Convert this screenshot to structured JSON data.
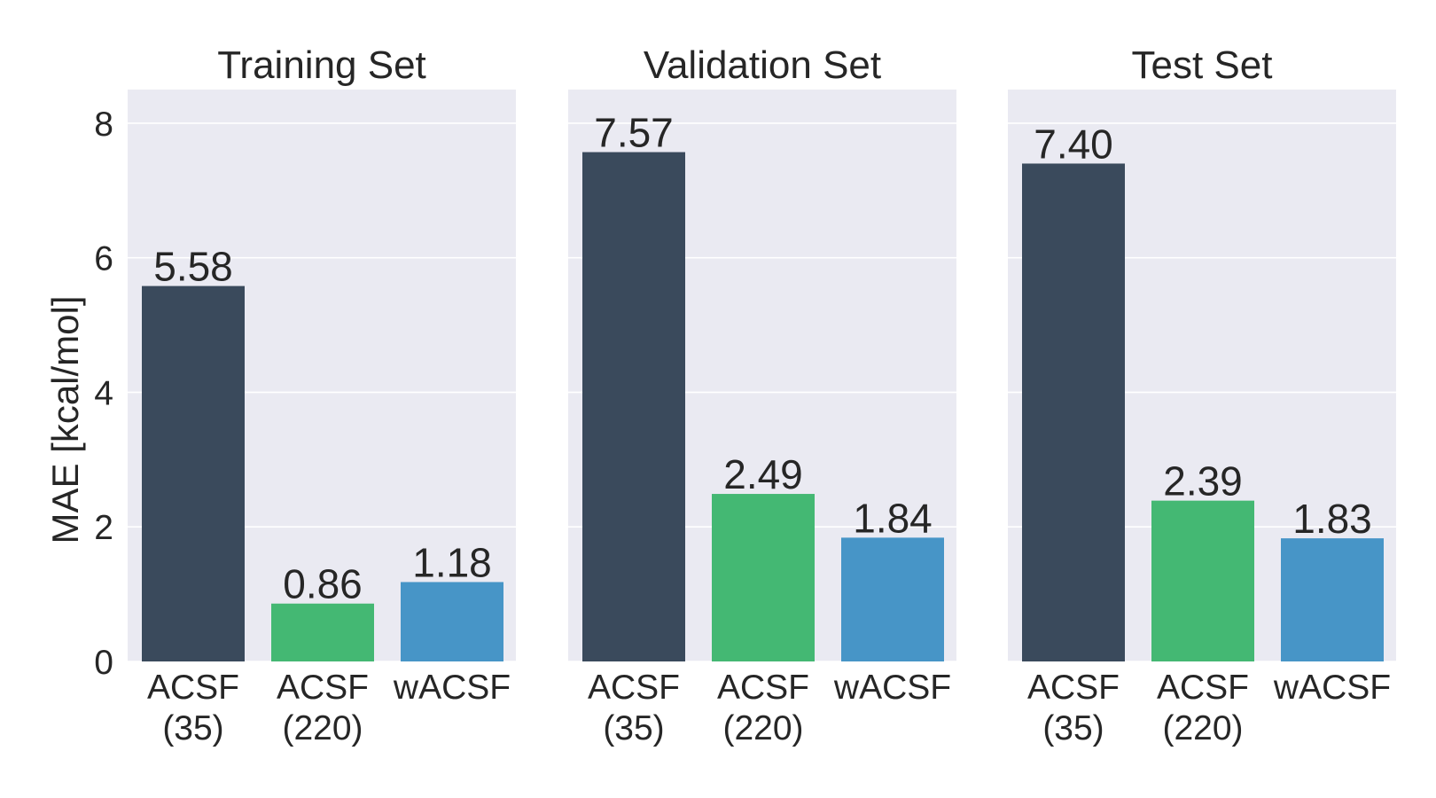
{
  "chart_data": [
    {
      "type": "bar",
      "title": "Training Set",
      "categories": [
        "ACSF\n(35)",
        "ACSF\n(220)",
        "wACSF"
      ],
      "values": [
        5.58,
        0.86,
        1.18
      ],
      "value_labels": [
        "5.58",
        "0.86",
        "1.18"
      ],
      "ylabel": "MAE [kcal/mol]",
      "ylim": [
        0,
        8.5
      ],
      "yticks": [
        "0",
        "2",
        "4",
        "6",
        "8"
      ],
      "grid": true
    },
    {
      "type": "bar",
      "title": "Validation Set",
      "categories": [
        "ACSF\n(35)",
        "ACSF\n(220)",
        "wACSF"
      ],
      "values": [
        7.57,
        2.49,
        1.84
      ],
      "value_labels": [
        "7.57",
        "2.49",
        "1.84"
      ],
      "ylabel": "",
      "ylim": [
        0,
        8.5
      ],
      "grid": true
    },
    {
      "type": "bar",
      "title": "Test Set",
      "categories": [
        "ACSF\n(35)",
        "ACSF\n(220)",
        "wACSF"
      ],
      "values": [
        7.4,
        2.39,
        1.83
      ],
      "value_labels": [
        "7.40",
        "2.39",
        "1.83"
      ],
      "ylabel": "",
      "ylim": [
        0,
        8.5
      ],
      "grid": true
    }
  ],
  "colors": {
    "plot_background": "#eaeaf2",
    "grid": "#ffffff",
    "bars": [
      "#3a4a5c",
      "#44b873",
      "#4795c7"
    ]
  }
}
